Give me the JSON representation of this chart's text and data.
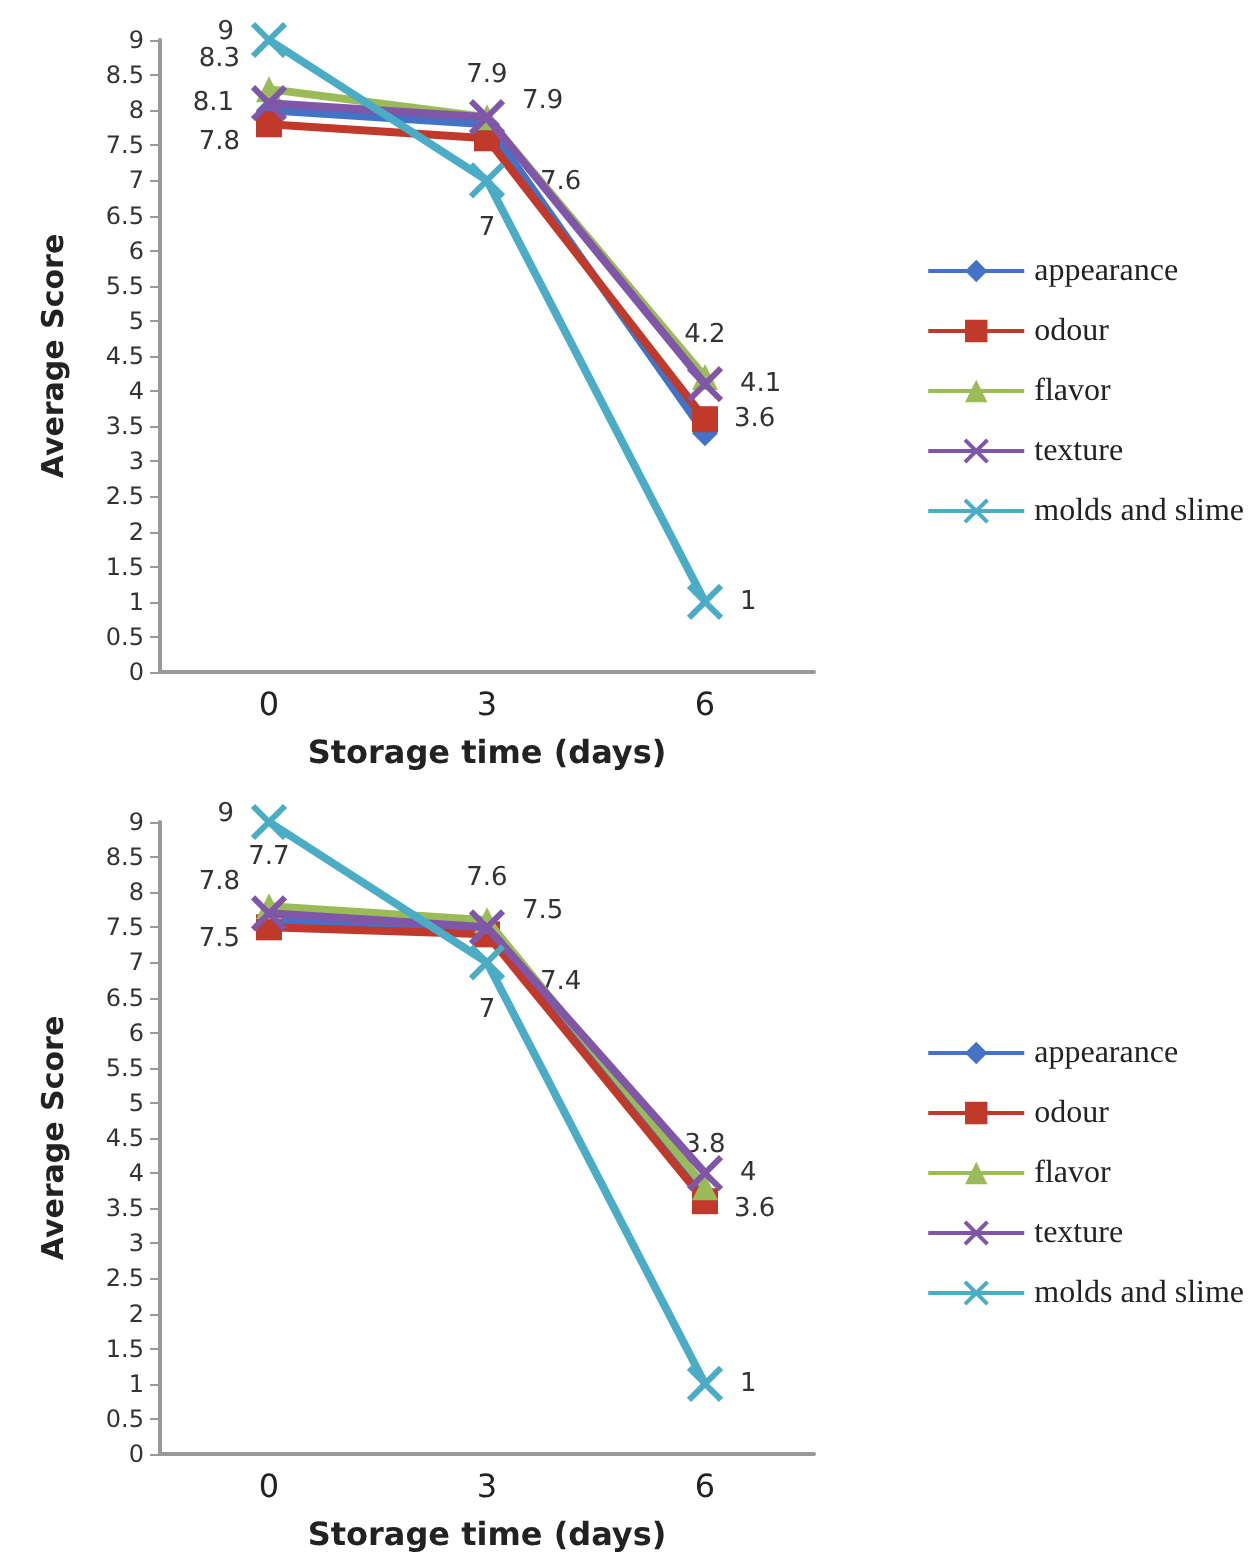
{
  "chart_data": [
    {
      "type": "line",
      "xlabel": "Storage time (days)",
      "ylabel": "Average Score",
      "categories": [
        "0",
        "3",
        "6"
      ],
      "ylim": [
        0,
        9
      ],
      "yticks": [
        0,
        0.5,
        1,
        1.5,
        2,
        2.5,
        3,
        3.5,
        4,
        4.5,
        5,
        5.5,
        6,
        6.5,
        7,
        7.5,
        8,
        8.5,
        9
      ],
      "grid": false,
      "legend": "right",
      "series": [
        {
          "name": "appearance",
          "color": "#4472c4",
          "marker": "diamond",
          "values": [
            8.0,
            7.8,
            3.4
          ]
        },
        {
          "name": "odour",
          "color": "#c0392b",
          "marker": "square",
          "values": [
            7.8,
            7.6,
            3.6
          ],
          "value_labels": [
            "7.8",
            "7.6",
            "3.6"
          ]
        },
        {
          "name": "flavor",
          "color": "#9bbb59",
          "marker": "triangle",
          "values": [
            8.3,
            7.9,
            4.2
          ],
          "value_labels": [
            "8.3",
            "7.9",
            "4.2"
          ]
        },
        {
          "name": "texture",
          "color": "#7f56a8",
          "marker": "cross",
          "values": [
            8.1,
            7.9,
            4.1
          ],
          "value_labels": [
            "8.1",
            "7.9",
            "4.1"
          ]
        },
        {
          "name": "molds and slime",
          "color": "#4bacc6",
          "marker": "cross",
          "values": [
            9,
            7,
            1
          ],
          "value_labels": [
            "9",
            "7",
            "1"
          ]
        }
      ]
    },
    {
      "type": "line",
      "xlabel": "Storage time (days)",
      "ylabel": "Average Score",
      "categories": [
        "0",
        "3",
        "6"
      ],
      "ylim": [
        0,
        9
      ],
      "yticks": [
        0,
        0.5,
        1,
        1.5,
        2,
        2.5,
        3,
        3.5,
        4,
        4.5,
        5,
        5.5,
        6,
        6.5,
        7,
        7.5,
        8,
        8.5,
        9
      ],
      "grid": false,
      "legend": "right",
      "series": [
        {
          "name": "appearance",
          "color": "#4472c4",
          "marker": "diamond",
          "values": [
            7.6,
            7.5,
            3.7
          ]
        },
        {
          "name": "odour",
          "color": "#c0392b",
          "marker": "square",
          "values": [
            7.5,
            7.4,
            3.6
          ],
          "value_labels": [
            "7.5",
            "7.4",
            "3.6"
          ]
        },
        {
          "name": "flavor",
          "color": "#9bbb59",
          "marker": "triangle",
          "values": [
            7.8,
            7.6,
            3.8
          ],
          "value_labels": [
            "7.8",
            "7.6",
            "3.8"
          ]
        },
        {
          "name": "texture",
          "color": "#7f56a8",
          "marker": "cross",
          "values": [
            7.7,
            7.5,
            4
          ],
          "value_labels": [
            "7.7",
            "7.5",
            "4"
          ]
        },
        {
          "name": "molds and slime",
          "color": "#4bacc6",
          "marker": "cross",
          "values": [
            9,
            7,
            1
          ],
          "value_labels": [
            "9",
            "7",
            "1"
          ]
        }
      ]
    }
  ]
}
